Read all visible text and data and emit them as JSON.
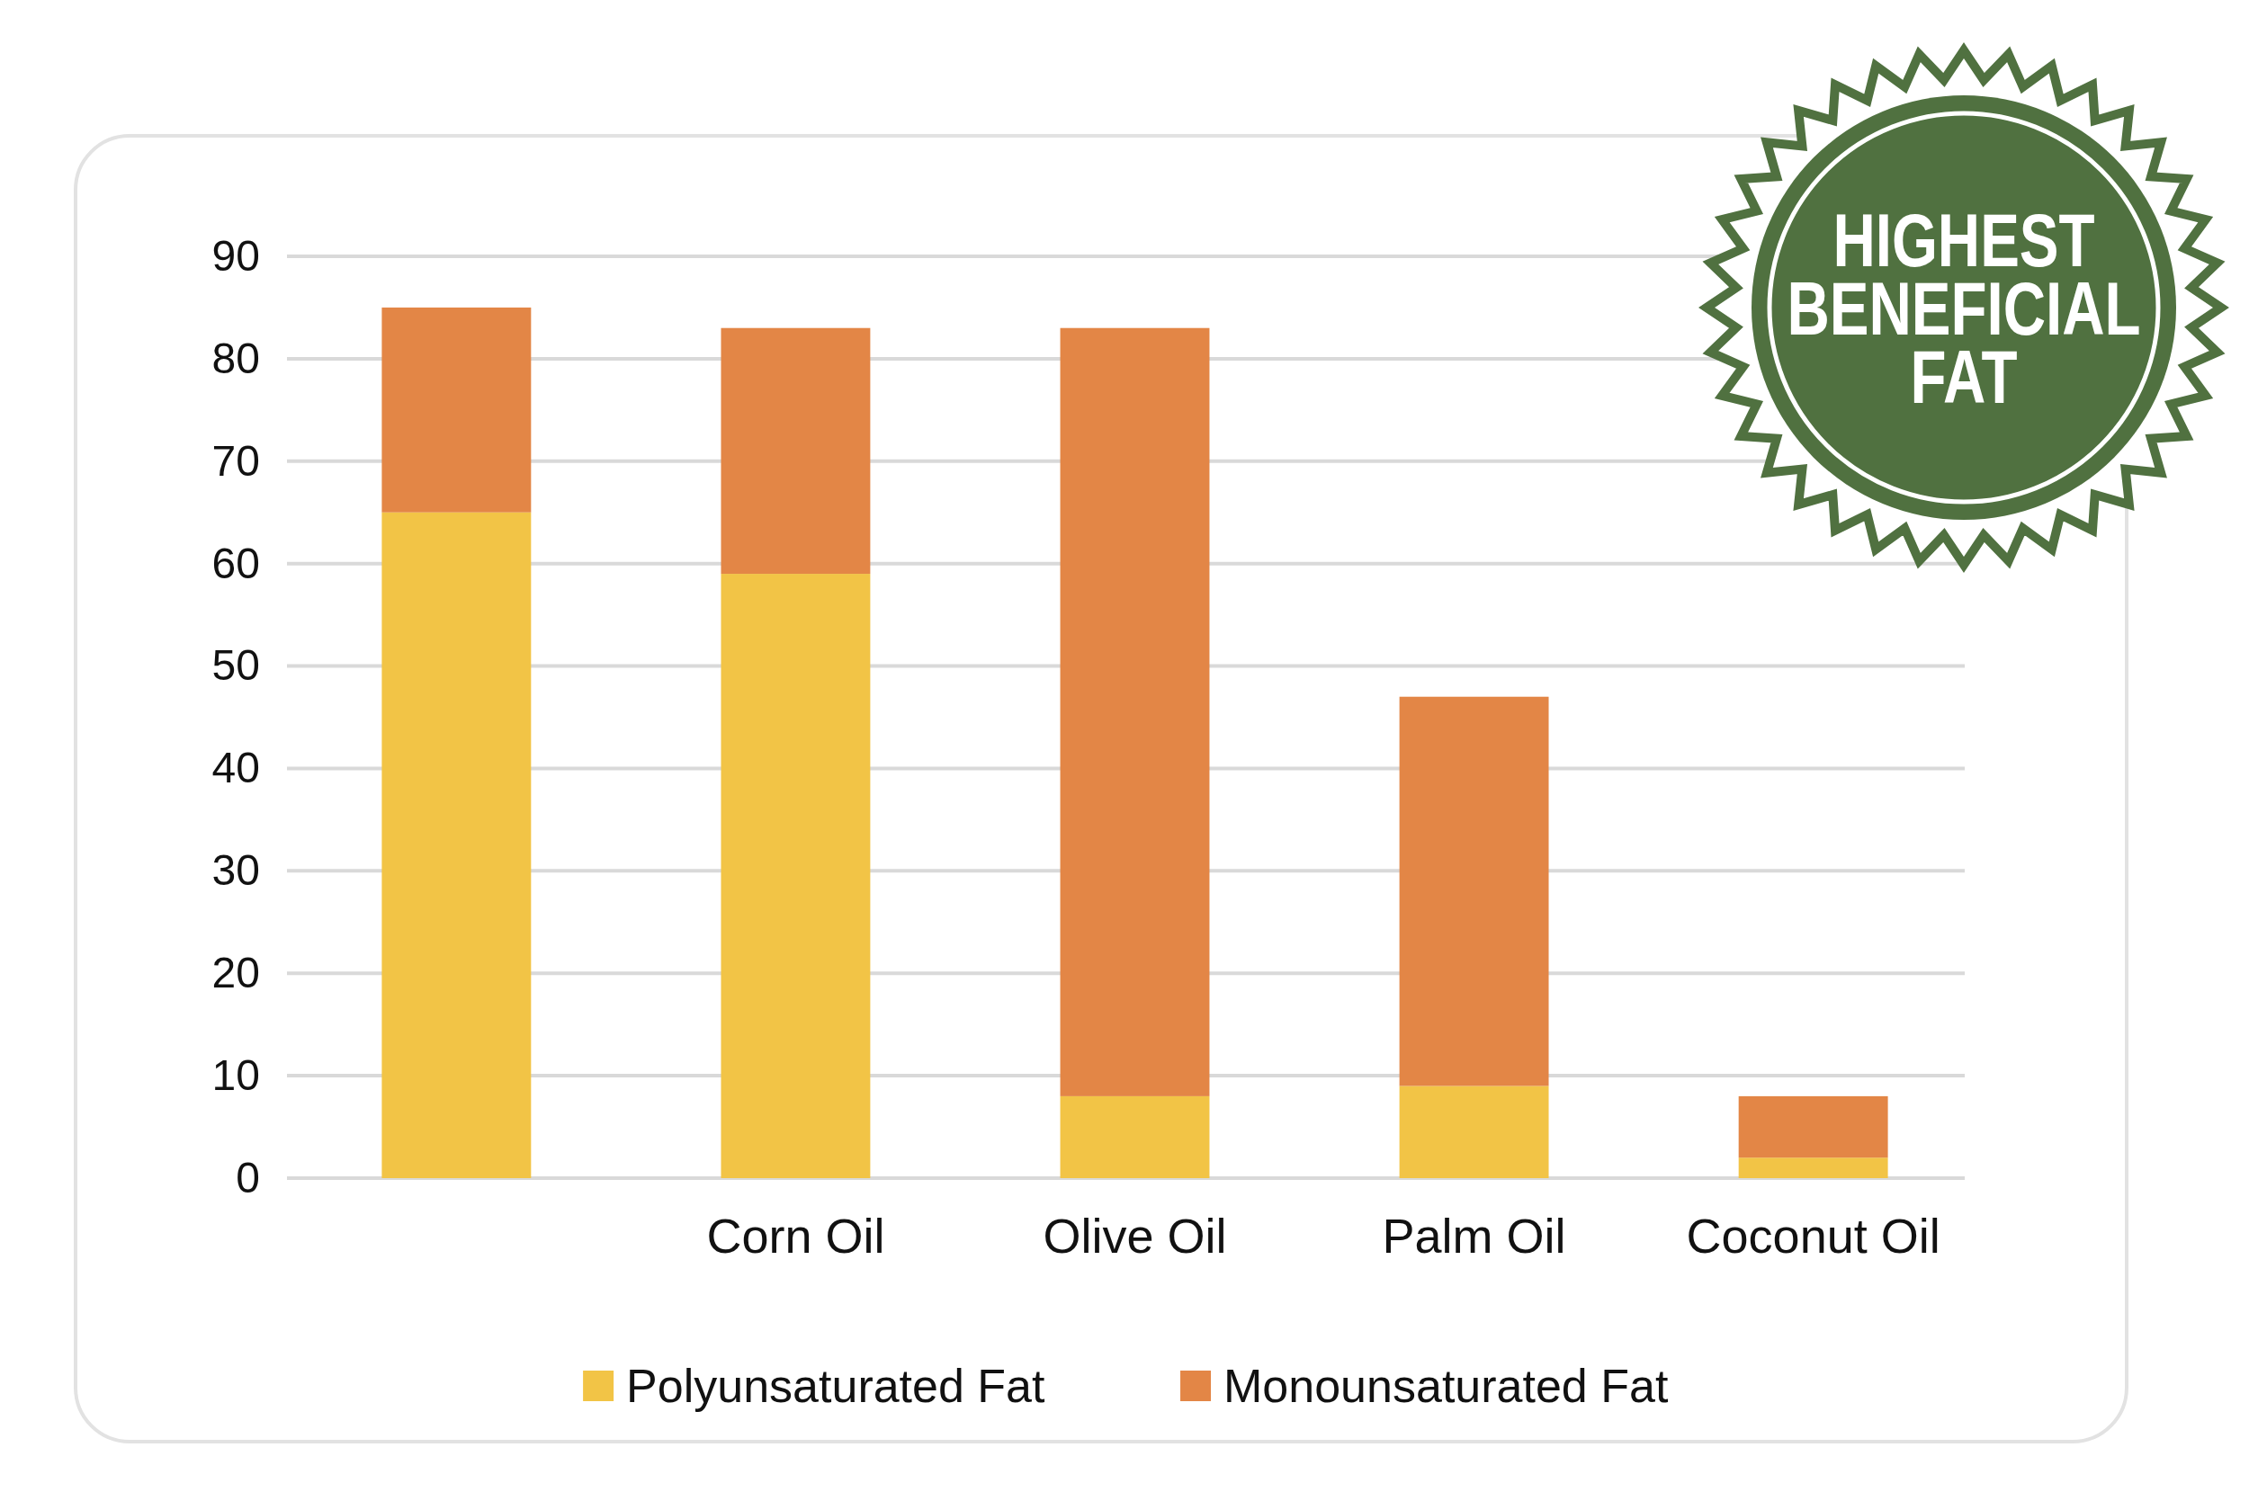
{
  "chart_data": {
    "type": "bar",
    "stacked": true,
    "categories": [
      null,
      "Corn Oil",
      "Olive Oil",
      "Palm Oil",
      "Coconut Oil"
    ],
    "series": [
      {
        "name": "Polyunsaturated Fat",
        "color": "#f2c446",
        "values": [
          65,
          59,
          8,
          9,
          2
        ]
      },
      {
        "name": "Monounsaturated Fat",
        "color": "#e38646",
        "values": [
          20,
          24,
          75,
          38,
          6
        ]
      }
    ],
    "ylim": [
      0,
      90
    ],
    "yticks": [
      0,
      10,
      20,
      30,
      40,
      50,
      60,
      70,
      80,
      90
    ],
    "grid": "y",
    "legend": "bottom",
    "annotations": [
      "HIGHEST BENEFICIAL FAT"
    ]
  }
}
